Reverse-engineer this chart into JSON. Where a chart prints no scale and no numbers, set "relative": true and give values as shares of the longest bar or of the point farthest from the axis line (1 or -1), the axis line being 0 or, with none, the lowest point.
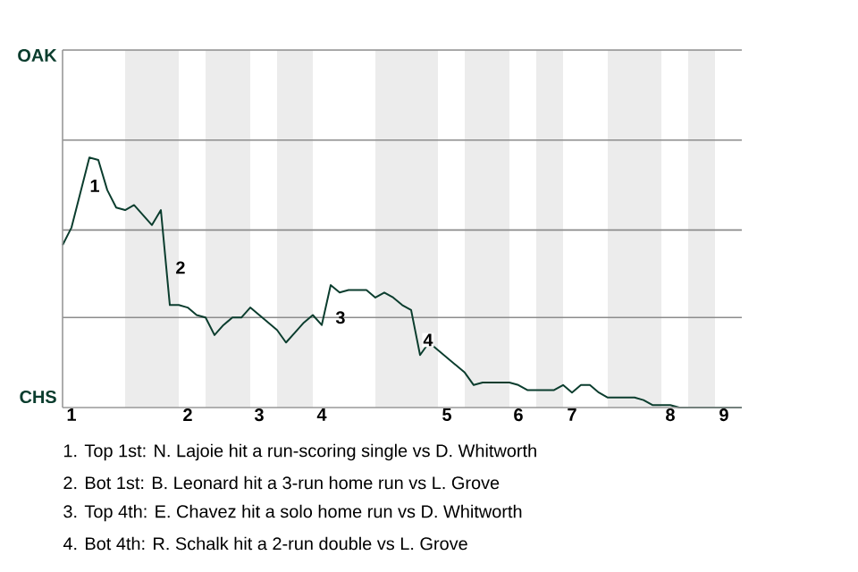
{
  "chart_data": {
    "type": "line",
    "relative": true,
    "categories": [
      null,
      "1",
      null,
      null,
      null,
      null,
      null,
      null,
      null,
      null,
      null,
      null,
      null,
      null,
      "2",
      null,
      null,
      null,
      null,
      null,
      null,
      null,
      "3",
      null,
      null,
      null,
      null,
      null,
      null,
      "4",
      null,
      null,
      null,
      null,
      null,
      null,
      null,
      null,
      null,
      null,
      null,
      null,
      null,
      "5",
      null,
      null,
      null,
      null,
      null,
      null,
      null,
      "6",
      null,
      null,
      null,
      null,
      null,
      "7",
      null,
      null,
      null,
      null,
      null,
      null,
      null,
      null,
      null,
      null,
      "8",
      null,
      null,
      null,
      null,
      null,
      "9",
      null,
      null
    ],
    "series": [
      {
        "color": "#0b3d2e",
        "values": [
          0.65,
          0.72,
          0.86,
          1,
          0.99,
          0.87,
          0.8,
          0.79,
          0.81,
          0.77,
          0.73,
          0.79,
          0.41,
          0.41,
          0.4,
          0.37,
          0.36,
          0.29,
          0.33,
          0.36,
          0.36,
          0.4,
          0.37,
          0.34,
          0.31,
          0.26,
          0.3,
          0.34,
          0.37,
          0.33,
          0.49,
          0.46,
          0.47,
          0.47,
          0.47,
          0.44,
          0.46,
          0.44,
          0.41,
          0.39,
          0.21,
          0.26,
          0.23,
          0.2,
          0.17,
          0.14,
          0.09,
          0.1,
          0.1,
          0.1,
          0.1,
          0.09,
          0.07,
          0.07,
          0.07,
          0.07,
          0.09,
          0.06,
          0.09,
          0.09,
          0.06,
          0.04,
          0.04,
          0.04,
          0.04,
          0.03,
          0.01,
          0.01,
          0.01,
          0,
          0,
          0,
          0,
          0,
          0,
          0,
          0
        ]
      }
    ],
    "ref_lines": [
      {
        "axis": "y",
        "value": 0.36,
        "color": "#8c8c8c"
      },
      {
        "axis": "y",
        "value": 0.71,
        "color": "#8c8c8c"
      },
      {
        "axis": "y",
        "value": 1.07,
        "color": "#8c8c8c"
      },
      {
        "axis": "y",
        "value": 1.43,
        "color": "#8c8c8c"
      }
    ],
    "marker": "none",
    "line_style": "solid",
    "annotations": [
      "OAK",
      "CHS",
      "1",
      "2",
      "3",
      "4",
      "1. Top 1st: N. Lajoie hit a run-scoring single vs D. Whitworth",
      "2. Bot 1st: B. Leonard hit a 3-run home run vs L. Grove",
      "3. Top 4th: E. Chavez hit a solo home run vs D. Whitworth",
      "4. Bot 4th: R. Schalk hit a 2-run double vs L. Grove"
    ]
  }
}
